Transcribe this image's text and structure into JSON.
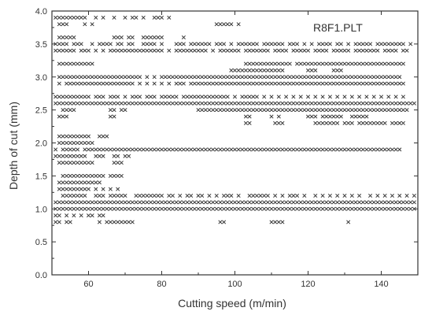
{
  "chart_data": {
    "type": "scatter",
    "annotation": "R8F1.PLT",
    "xlabel": "Cutting speed (m/min)",
    "ylabel": "Depth of cut (mm)",
    "xlim": [
      50,
      150
    ],
    "ylim": [
      0.0,
      4.0
    ],
    "xticks": [
      "60",
      "80",
      "100",
      "120",
      "140"
    ],
    "xtick_values": [
      60,
      80,
      100,
      120,
      140
    ],
    "yticks": [
      "0.0",
      "0.5",
      "1.0",
      "1.5",
      "2.0",
      "2.5",
      "3.0",
      "3.5",
      "4.0"
    ],
    "ytick_values": [
      0.0,
      0.5,
      1.0,
      1.5,
      2.0,
      2.5,
      3.0,
      3.5,
      4.0
    ],
    "grid": false,
    "marker": "x",
    "rows": [
      {
        "y": 3.9,
        "x": [
          51,
          52,
          53,
          54,
          55,
          56,
          57,
          58,
          59,
          62,
          64,
          67,
          70,
          72,
          73,
          75,
          78,
          79,
          80,
          82
        ]
      },
      {
        "y": 3.8,
        "x": [
          52,
          53,
          54,
          59,
          61,
          95,
          96,
          97,
          98,
          99,
          101
        ]
      },
      {
        "y": 3.6,
        "x": [
          52,
          53,
          54,
          55,
          56,
          67,
          68,
          69,
          71,
          72,
          75,
          76,
          77,
          78,
          79,
          80,
          86
        ]
      },
      {
        "y": 3.5,
        "x": [
          51,
          52,
          53,
          54,
          56,
          57,
          58,
          61,
          63,
          64,
          65,
          66,
          68,
          69,
          71,
          72,
          75,
          76,
          77,
          78,
          80,
          84,
          85,
          86,
          88,
          89,
          90,
          91,
          92,
          93,
          95,
          96,
          97,
          99,
          101,
          102,
          103,
          104,
          105,
          106,
          108,
          109,
          110,
          111,
          112,
          113,
          115,
          116,
          117,
          119,
          121,
          123,
          124,
          125,
          126,
          128,
          129,
          131,
          133,
          134,
          135,
          136,
          137,
          139,
          140,
          141,
          142,
          143,
          144,
          145,
          146,
          148
        ]
      },
      {
        "y": 3.4,
        "x": [
          51,
          52,
          53,
          54,
          55,
          56,
          58,
          59,
          60,
          62,
          64,
          66,
          67,
          68,
          69,
          70,
          71,
          72,
          73,
          74,
          75,
          76,
          77,
          78,
          79,
          80,
          82,
          84,
          85,
          86,
          87,
          88,
          89,
          90,
          91,
          92,
          94,
          96,
          97,
          98,
          99,
          100,
          101,
          103,
          104,
          105,
          106,
          107,
          108,
          109,
          111,
          112,
          113,
          114,
          116,
          117,
          118,
          119,
          120,
          122,
          123,
          124,
          125,
          127,
          128,
          129,
          130,
          131,
          133,
          134,
          135,
          136,
          137,
          138,
          139,
          141,
          142,
          143,
          144,
          146,
          147
        ]
      },
      {
        "y": 3.2,
        "x": [
          52,
          53,
          54,
          55,
          56,
          57,
          58,
          59,
          60,
          61,
          103,
          104,
          105,
          106,
          107,
          108,
          109,
          110,
          111,
          112,
          113,
          114,
          115,
          117,
          118,
          119,
          120,
          121,
          122,
          123,
          124,
          125,
          126,
          127,
          128,
          129,
          130,
          131,
          132,
          133,
          134,
          135,
          136,
          137,
          138,
          139,
          140,
          141,
          142,
          143,
          144,
          145,
          146
        ]
      },
      {
        "y": 3.1,
        "x": [
          99,
          100,
          101,
          102,
          103,
          104,
          105,
          106,
          107,
          108,
          109,
          110,
          111,
          112,
          113,
          120,
          121,
          122,
          127,
          128,
          129
        ]
      },
      {
        "y": 3.0,
        "x": [
          52,
          53,
          54,
          55,
          56,
          57,
          58,
          59,
          60,
          61,
          62,
          63,
          64,
          65,
          66,
          67,
          68,
          69,
          70,
          71,
          72,
          73,
          74,
          76,
          78,
          80,
          81,
          82,
          83,
          84,
          85,
          86,
          87,
          88,
          89,
          90,
          91,
          92,
          93,
          94,
          95,
          96,
          97,
          98,
          99,
          100,
          101,
          102,
          103,
          104,
          105,
          106,
          107,
          108,
          109,
          110,
          111,
          112,
          113,
          114,
          115,
          116,
          117,
          118,
          119,
          120,
          121,
          122,
          123,
          124,
          125,
          126,
          127,
          128,
          129,
          130,
          131,
          132,
          133,
          134,
          135,
          136,
          137,
          138,
          139,
          140,
          141,
          142,
          143,
          144,
          145
        ]
      },
      {
        "y": 2.9,
        "x": [
          52,
          54,
          55,
          56,
          57,
          58,
          59,
          60,
          61,
          62,
          63,
          64,
          65,
          66,
          67,
          68,
          69,
          70,
          71,
          72,
          74,
          76,
          78,
          80,
          82,
          84,
          85,
          86,
          88,
          89,
          90,
          91,
          92,
          93,
          94,
          95,
          96,
          97,
          98,
          99,
          100,
          101,
          102,
          103,
          104,
          105,
          106,
          107,
          108,
          109,
          110,
          111,
          112,
          113,
          114,
          115,
          116,
          117,
          118,
          119,
          120,
          121,
          122,
          123,
          124,
          125,
          126,
          127,
          128,
          129,
          130,
          131,
          132,
          133,
          134,
          135,
          136,
          137,
          138,
          139,
          140,
          141,
          142,
          143,
          144,
          145,
          146
        ]
      },
      {
        "y": 2.7,
        "x": [
          51,
          52,
          53,
          54,
          55,
          56,
          57,
          58,
          59,
          60,
          62,
          63,
          64,
          66,
          67,
          68,
          70,
          72,
          73,
          74,
          76,
          77,
          78,
          80,
          81,
          82,
          83,
          84,
          86,
          87,
          88,
          89,
          90,
          91,
          92,
          93,
          94,
          95,
          96,
          97,
          98,
          100,
          102,
          103,
          104,
          105,
          106,
          108,
          110,
          112,
          114,
          116,
          118,
          120,
          122,
          124,
          126,
          128,
          130,
          132,
          134,
          136,
          138,
          140,
          142,
          144,
          146
        ]
      },
      {
        "y": 2.6,
        "x": [
          51,
          52,
          53,
          54,
          55,
          56,
          57,
          58,
          59,
          60,
          61,
          62,
          63,
          64,
          65,
          66,
          67,
          68,
          69,
          70,
          71,
          72,
          73,
          74,
          75,
          76,
          77,
          78,
          79,
          80,
          81,
          82,
          83,
          84,
          85,
          86,
          87,
          88,
          89,
          90,
          91,
          92,
          93,
          94,
          95,
          96,
          97,
          98,
          99,
          100,
          101,
          102,
          103,
          104,
          105,
          106,
          107,
          108,
          109,
          110,
          111,
          112,
          113,
          114,
          115,
          116,
          117,
          118,
          119,
          120,
          121,
          122,
          123,
          124,
          125,
          126,
          127,
          128,
          129,
          130,
          131,
          132,
          133,
          134,
          135,
          136,
          137,
          138,
          139,
          140,
          141,
          142,
          143,
          144,
          145,
          146,
          147,
          148,
          149
        ]
      },
      {
        "y": 2.5,
        "x": [
          53,
          54,
          55,
          56,
          66,
          67,
          69,
          70,
          90,
          91,
          92,
          93,
          94,
          95,
          96,
          97,
          98,
          99,
          100,
          101,
          102,
          103,
          104,
          105,
          106,
          107,
          108,
          109,
          110,
          111,
          112,
          113,
          114,
          115,
          116,
          117,
          118,
          119,
          120,
          121,
          122,
          123,
          124,
          125,
          126,
          127,
          128,
          129,
          130,
          131,
          132,
          133,
          134,
          135,
          136,
          137,
          138,
          139,
          140,
          141,
          142,
          143,
          144,
          145,
          146,
          147
        ]
      },
      {
        "y": 2.4,
        "x": [
          52,
          53,
          54,
          66,
          67,
          103,
          104,
          110,
          112,
          120,
          121,
          122,
          124,
          125,
          126,
          127,
          128,
          129,
          132,
          133,
          134,
          135,
          136
        ]
      },
      {
        "y": 2.3,
        "x": [
          103,
          104,
          111,
          112,
          113,
          122,
          123,
          124,
          125,
          126,
          127,
          128,
          130,
          131,
          132,
          134,
          135,
          136,
          137,
          138,
          139,
          140,
          141,
          143,
          144,
          145,
          146
        ]
      },
      {
        "y": 2.1,
        "x": [
          52,
          53,
          54,
          55,
          56,
          57,
          58,
          59,
          60,
          63,
          64,
          65
        ]
      },
      {
        "y": 2.0,
        "x": [
          52,
          53,
          54,
          55,
          56,
          57,
          58,
          59,
          60,
          61
        ]
      },
      {
        "y": 1.9,
        "x": [
          51,
          53,
          54,
          55,
          56,
          57,
          59,
          60,
          61,
          62,
          63,
          64,
          65,
          66,
          67,
          68,
          69,
          70,
          71,
          72,
          73,
          74,
          75,
          76,
          77,
          78,
          79,
          80,
          81,
          82,
          83,
          84,
          85,
          86,
          87,
          88,
          89,
          90,
          91,
          92,
          93,
          94,
          95,
          96,
          97,
          98,
          99,
          100,
          101,
          102,
          103,
          104,
          105,
          106,
          107,
          108,
          109,
          110,
          111,
          112,
          113,
          114,
          115,
          116,
          117,
          118,
          119,
          120,
          121,
          122,
          123,
          124,
          125,
          126,
          127,
          128,
          129,
          130,
          131,
          132,
          133,
          134,
          135,
          136,
          137,
          138,
          139,
          140,
          141,
          142,
          143,
          144,
          145
        ]
      },
      {
        "y": 1.8,
        "x": [
          51,
          52,
          53,
          54,
          55,
          56,
          57,
          58,
          59,
          62,
          63,
          64,
          67,
          68,
          70,
          71
        ]
      },
      {
        "y": 1.7,
        "x": [
          52,
          53,
          54,
          55,
          56,
          57,
          58,
          59,
          60,
          61,
          67,
          68,
          69
        ]
      },
      {
        "y": 1.5,
        "x": [
          53,
          54,
          55,
          56,
          57,
          58,
          59,
          60,
          61,
          62,
          63,
          64,
          66,
          67,
          68,
          69
        ]
      },
      {
        "y": 1.4,
        "x": [
          52,
          53,
          54,
          55,
          56,
          57,
          58,
          59,
          60,
          61,
          62,
          63
        ]
      },
      {
        "y": 1.3,
        "x": [
          52,
          53,
          54,
          55,
          56,
          57,
          58,
          59,
          60,
          62,
          64,
          66,
          68
        ]
      },
      {
        "y": 1.2,
        "x": [
          53,
          54,
          55,
          56,
          57,
          58,
          59,
          62,
          63,
          64,
          66,
          67,
          68,
          69,
          70,
          73,
          74,
          75,
          76,
          77,
          78,
          79,
          80,
          82,
          83,
          85,
          87,
          88,
          90,
          91,
          93,
          95,
          97,
          98,
          99,
          101,
          104,
          105,
          106,
          107,
          108,
          109,
          111,
          113,
          115,
          116,
          117,
          119,
          122,
          124,
          126,
          128,
          130,
          132,
          134,
          137,
          139,
          141,
          143,
          145,
          147,
          149
        ]
      },
      {
        "y": 1.1,
        "x": [
          51,
          52,
          53,
          54,
          55,
          56,
          57,
          58,
          59,
          60,
          61,
          62,
          63,
          64,
          65,
          66,
          67,
          68,
          69,
          70,
          71,
          72,
          73,
          74,
          75,
          76,
          77,
          78,
          79,
          80,
          81,
          82,
          83,
          84,
          85,
          86,
          87,
          88,
          89,
          90,
          91,
          92,
          93,
          94,
          95,
          96,
          97,
          98,
          99,
          100,
          101,
          102,
          103,
          104,
          105,
          106,
          107,
          108,
          109,
          110,
          111,
          112,
          113,
          114,
          115,
          116,
          117,
          118,
          119,
          120,
          121,
          122,
          123,
          124,
          125,
          126,
          127,
          128,
          129,
          130,
          131,
          132,
          133,
          134,
          135,
          136,
          137,
          138,
          139,
          140,
          141,
          142,
          143,
          144,
          145,
          146,
          147,
          148,
          149
        ]
      },
      {
        "y": 1.0,
        "x": [
          51,
          52,
          53,
          54,
          55,
          56,
          57,
          58,
          59,
          60,
          61,
          62,
          63,
          64,
          65,
          66,
          67,
          68,
          69,
          70,
          71,
          72,
          73,
          74,
          75,
          76,
          77,
          78,
          79,
          80,
          81,
          82,
          83,
          84,
          85,
          86,
          87,
          88,
          89,
          90,
          91,
          92,
          93,
          94,
          95,
          96,
          97,
          98,
          99,
          100,
          101,
          102,
          103,
          104,
          105,
          106,
          107,
          108,
          109,
          110,
          111,
          112,
          113,
          114,
          115,
          116,
          117,
          118,
          119,
          120,
          121,
          122,
          123,
          124,
          125,
          126,
          127,
          128,
          129,
          130,
          131,
          132,
          133,
          134,
          135,
          136,
          137,
          138,
          139,
          140,
          141,
          142,
          143,
          144,
          145,
          146,
          147,
          148,
          149
        ]
      },
      {
        "y": 0.9,
        "x": [
          51,
          52,
          54,
          56,
          58,
          60,
          61,
          63,
          64
        ]
      },
      {
        "y": 0.8,
        "x": [
          51,
          52,
          54,
          55,
          63,
          65,
          66,
          67,
          68,
          69,
          70,
          71,
          72,
          96,
          97,
          110,
          111,
          112,
          113,
          131
        ]
      }
    ]
  }
}
